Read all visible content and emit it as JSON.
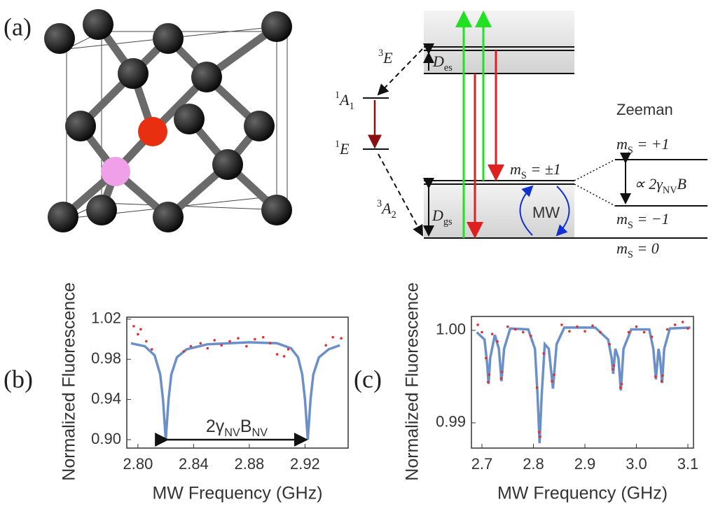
{
  "figure": {
    "panel_label": "(a)",
    "levels": [
      {
        "parts": [
          {
            "text": "3",
            "pos": "sup"
          },
          {
            "text": "E"
          }
        ]
      },
      {
        "parts": [
          {
            "text": "D"
          },
          {
            "text": "es",
            "pos": "sub"
          }
        ]
      },
      {
        "parts": [
          {
            "text": "1",
            "pos": "sup"
          },
          {
            "text": "A"
          },
          {
            "text": "1",
            "pos": "sub"
          }
        ]
      },
      {
        "parts": [
          {
            "text": "1",
            "pos": "sup"
          },
          {
            "text": "E"
          }
        ]
      },
      {
        "parts": [
          {
            "text": "m"
          },
          {
            "text": "S",
            "pos": "sub"
          },
          {
            "text": " = ±1"
          }
        ]
      },
      {
        "parts": [
          {
            "text": "3",
            "pos": "sup"
          },
          {
            "text": "A"
          },
          {
            "text": "2",
            "pos": "sub"
          }
        ]
      },
      {
        "parts": [
          {
            "text": "D"
          },
          {
            "text": "gs",
            "pos": "sub"
          }
        ]
      },
      {
        "parts": [
          {
            "text": "MW"
          }
        ]
      },
      {
        "parts": [
          {
            "text": "Zeeman"
          }
        ]
      },
      {
        "parts": [
          {
            "text": "m"
          },
          {
            "text": "S",
            "pos": "sub"
          },
          {
            "text": " = +1"
          }
        ]
      },
      {
        "parts": [
          {
            "text": "∝ 2γ"
          },
          {
            "text": "NV",
            "pos": "sub"
          },
          {
            "text": "B"
          }
        ]
      },
      {
        "parts": [
          {
            "text": "m"
          },
          {
            "text": "S",
            "pos": "sub"
          },
          {
            "text": " = −1"
          }
        ]
      },
      {
        "parts": [
          {
            "text": "m"
          },
          {
            "text": "S",
            "pos": "sub"
          },
          {
            "text": " = 0"
          }
        ]
      }
    ]
  },
  "chart_data": [
    {
      "type": "line",
      "panel_label": "(b)",
      "xlabel": "MW Frequency (GHz)",
      "ylabel": "Normalized Fluorescence",
      "xlim": [
        2.792,
        2.951
      ],
      "ylim": [
        0.8916,
        1.022
      ],
      "xticks": [
        {
          "value": 2.8,
          "label": "2.80"
        },
        2.84,
        2.88,
        2.92
      ],
      "yticks": [
        1.02,
        0.98,
        0.94,
        {
          "value": 0.9,
          "label": "0.90"
        }
      ],
      "series": [
        {
          "type": "line",
          "color": "#6b8fc8",
          "x": [
            2.795,
            2.805,
            2.812,
            2.816,
            2.818,
            2.82,
            2.822,
            2.824,
            2.828,
            2.835,
            2.85,
            2.88,
            2.9,
            2.91,
            2.915,
            2.918,
            2.92,
            2.922,
            2.924,
            2.926,
            2.93,
            2.937,
            2.945
          ],
          "values": [
            0.996,
            0.993,
            0.984,
            0.965,
            0.94,
            0.9,
            0.94,
            0.965,
            0.982,
            0.99,
            0.995,
            0.997,
            0.996,
            0.991,
            0.982,
            0.965,
            0.94,
            0.9,
            0.94,
            0.965,
            0.982,
            0.99,
            0.994
          ]
        },
        {
          "type": "scatter",
          "color": "#e03030",
          "x": [
            2.797,
            2.8,
            2.802,
            2.806,
            2.81,
            2.833,
            2.838,
            2.845,
            2.85,
            2.855,
            2.86,
            2.866,
            2.872,
            2.878,
            2.884,
            2.89,
            2.895,
            2.9,
            2.905,
            2.908,
            2.935,
            2.94,
            2.946
          ],
          "values": [
            1.013,
            1.005,
            1.01,
            0.998,
            0.99,
            0.988,
            0.993,
            0.996,
            0.991,
            0.999,
            0.994,
            0.998,
            1.001,
            0.993,
            1.0,
            1.002,
            0.996,
            0.985,
            0.983,
            0.99,
            0.994,
            1.002,
            1.001
          ]
        }
      ],
      "annotation": {
        "parts": [
          {
            "text": "2γ"
          },
          {
            "text": "NV",
            "pos": "sub"
          },
          {
            "text": "B"
          },
          {
            "text": "NV",
            "pos": "sub"
          }
        ],
        "x": [
          2.82,
          2.922
        ],
        "y": 0.9
      }
    },
    {
      "type": "line",
      "panel_label": "(c)",
      "xlabel": "MW Frequency (GHz)",
      "ylabel": "Normalized Fluorescence",
      "xlim": [
        2.6796,
        3.1109
      ],
      "ylim": [
        0.98727,
        1.0015
      ],
      "xticks": [
        2.7,
        2.8,
        2.9,
        {
          "value": 3,
          "label": "3.0"
        },
        3.1
      ],
      "yticks": [
        {
          "value": 1,
          "label": "1.00"
        },
        0.99
      ],
      "series": [
        {
          "type": "line",
          "color": "#6b8fc8",
          "x": [
            2.69,
            2.705,
            2.71,
            2.713,
            2.716,
            2.725,
            2.733,
            2.738,
            2.743,
            2.755,
            2.79,
            2.803,
            2.808,
            2.812,
            2.816,
            2.822,
            2.83,
            2.838,
            2.845,
            2.86,
            2.92,
            2.945,
            2.952,
            2.955,
            2.959,
            2.965,
            2.97,
            2.975,
            2.99,
            3.025,
            3.033,
            3.038,
            3.043,
            3.046,
            3.05,
            3.054,
            3.065,
            3.105
          ],
          "values": [
            0.9998,
            0.999,
            0.9965,
            0.9942,
            0.997,
            0.9995,
            0.998,
            0.9945,
            0.998,
            1.0002,
            1.0001,
            0.998,
            0.993,
            0.9878,
            0.993,
            0.9985,
            0.998,
            0.9937,
            0.9985,
            1.0003,
            1.0003,
            0.999,
            0.997,
            0.9953,
            0.998,
            0.997,
            0.9935,
            0.998,
            1.0001,
            1.0001,
            0.998,
            0.9947,
            0.998,
            0.997,
            0.9943,
            0.998,
            1.0002,
            1.0003
          ]
        },
        {
          "type": "scatter",
          "color": "#e03030",
          "x": [
            2.692,
            2.7,
            2.708,
            2.712,
            2.714,
            2.72,
            2.73,
            2.737,
            2.739,
            2.75,
            2.765,
            2.78,
            2.795,
            2.807,
            2.811,
            2.813,
            2.82,
            2.836,
            2.84,
            2.855,
            2.87,
            2.885,
            2.9,
            2.915,
            2.93,
            2.948,
            2.954,
            2.956,
            2.969,
            2.971,
            2.985,
            3.0,
            3.015,
            3.03,
            3.037,
            3.049,
            3.051,
            3.06,
            3.075,
            3.09,
            3.1
          ],
          "values": [
            1.0006,
            0.9998,
            0.997,
            0.9944,
            0.9952,
            0.9996,
            0.9988,
            0.9948,
            0.9955,
            1.0004,
            1.0001,
            0.9998,
            0.9994,
            0.9938,
            0.989,
            0.9885,
            0.9975,
            0.9945,
            0.9952,
            1.0006,
            0.9999,
            1.0004,
            0.9999,
            1.0005,
            0.9998,
            0.9985,
            0.9958,
            0.9962,
            0.9938,
            0.9942,
            0.9998,
            1.0004,
            0.9998,
            0.9993,
            0.995,
            0.9945,
            0.9951,
            1.0001,
            1.0006,
            1.0009,
            1.0002
          ]
        }
      ]
    }
  ]
}
